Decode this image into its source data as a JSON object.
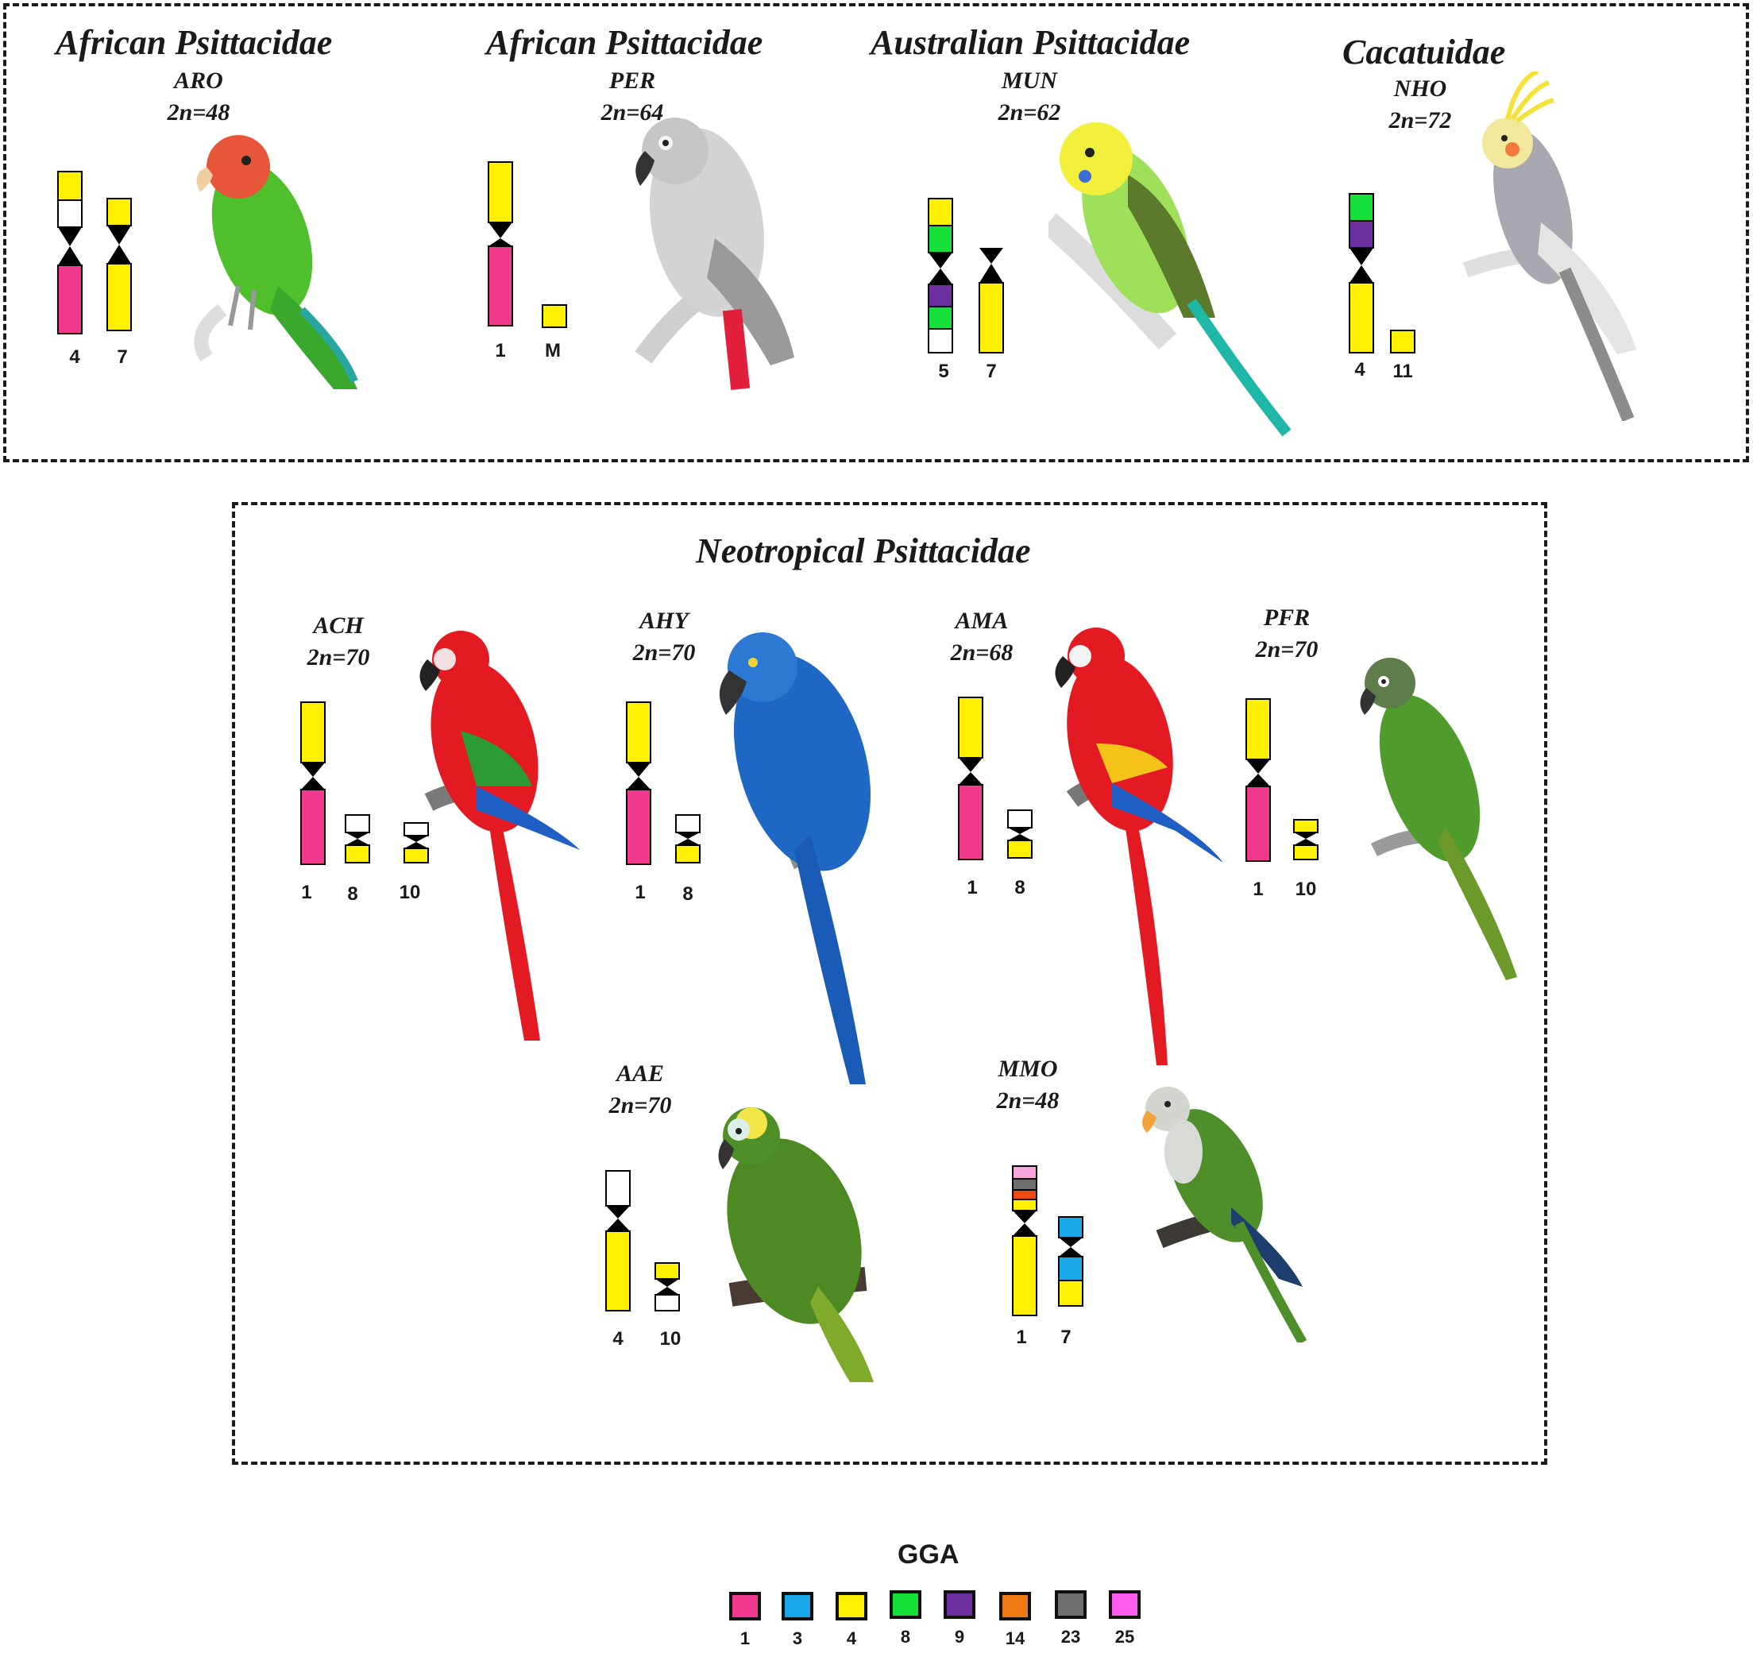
{
  "colors": {
    "GGA1": "#f0398f",
    "GGA3": "#1aa7e8",
    "GGA4": "#ffef00",
    "GGA8": "#15e03a",
    "GGA9": "#6b2f9f",
    "GGA14": "#ee7a11",
    "GGA23": "#6d6d6d",
    "GGA25": "#ff5cf0",
    "white": "#ffffff"
  },
  "top_groups": [
    {
      "title": "African Psittacidae"
    },
    {
      "title": "African Psittacidae"
    },
    {
      "title": "Australian Psittacidae"
    },
    {
      "title": "Cacatuidae"
    }
  ],
  "neo_group": {
    "title": "Neotropical Psittacidae"
  },
  "species": [
    {
      "code": "ARO",
      "karyotype": "2n=48",
      "chromosomes": [
        "4",
        "7"
      ],
      "bird": "lovebird-green"
    },
    {
      "code": "PER",
      "karyotype": "2n=64",
      "chromosomes": [
        "1",
        "M"
      ],
      "bird": "grey-parrot"
    },
    {
      "code": "MUN",
      "karyotype": "2n=62",
      "chromosomes": [
        "5",
        "7"
      ],
      "bird": "budgerigar"
    },
    {
      "code": "NHO",
      "karyotype": "2n=72",
      "chromosomes": [
        "4",
        "11"
      ],
      "bird": "cockatiel"
    },
    {
      "code": "ACH",
      "karyotype": "2n=70",
      "chromosomes": [
        "1",
        "8",
        "10"
      ],
      "bird": "red-green-macaw"
    },
    {
      "code": "AHY",
      "karyotype": "2n=70",
      "chromosomes": [
        "1",
        "8"
      ],
      "bird": "hyacinth-macaw"
    },
    {
      "code": "AMA",
      "karyotype": "2n=68",
      "chromosomes": [
        "1",
        "8"
      ],
      "bird": "scarlet-macaw"
    },
    {
      "code": "PFR",
      "karyotype": "2n=70",
      "chromosomes": [
        "1",
        "10"
      ],
      "bird": "green-conure"
    },
    {
      "code": "AAE",
      "karyotype": "2n=70",
      "chromosomes": [
        "4",
        "10"
      ],
      "bird": "amazon-parrot"
    },
    {
      "code": "MMO",
      "karyotype": "2n=48",
      "chromosomes": [
        "1",
        "7"
      ],
      "bird": "monk-parakeet"
    }
  ],
  "legend": {
    "title": "GGA",
    "items": [
      {
        "label": "1",
        "color": "#f0398f"
      },
      {
        "label": "3",
        "color": "#1aa7e8"
      },
      {
        "label": "4",
        "color": "#ffef00"
      },
      {
        "label": "8",
        "color": "#15e03a"
      },
      {
        "label": "9",
        "color": "#6b2f9f"
      },
      {
        "label": "14",
        "color": "#ee7a11"
      },
      {
        "label": "23",
        "color": "#6d6d6d"
      },
      {
        "label": "25",
        "color": "#ff5cf0"
      }
    ]
  }
}
